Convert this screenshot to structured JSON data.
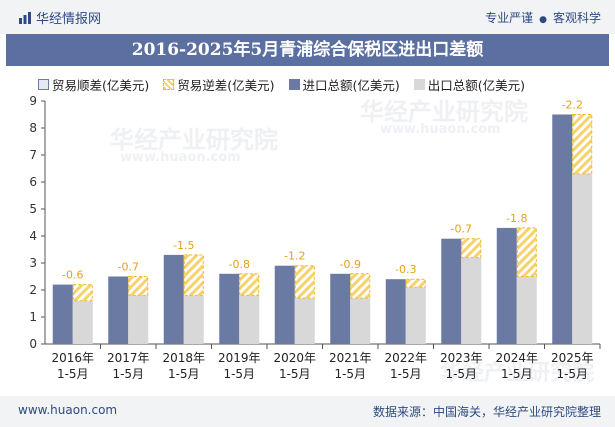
{
  "header": {
    "brand": "华经情报网",
    "slogan_left": "专业严谨",
    "slogan_sep": "●",
    "slogan_right": "客观科学"
  },
  "title": "2016-2025年5月青浦综合保税区进出口差额",
  "legend": {
    "shun": "贸易顺差(亿美元)",
    "ni": "贸易逆差(亿美元)",
    "import": "进口总额(亿美元)",
    "export": "出口总额(亿美元)"
  },
  "watermark": {
    "cn": "华经产业研究院",
    "en": "www.huaon.com"
  },
  "footer": {
    "left": "www.huaon.com",
    "right": "数据来源：中国海关，华经产业研究院整理"
  },
  "colors": {
    "import": "#6a7aa3",
    "export": "#d8d8d8",
    "deficit_border": "#f1b92a",
    "deficit_stripe": "#f6d36a",
    "label": "#e3a21a",
    "axis": "#555555",
    "title_bg": "#5b6fa0"
  },
  "chart_data": {
    "type": "bar",
    "title": "2016-2025年5月青浦综合保税区进出口差额",
    "categories": [
      "2016年\n1-5月",
      "2017年\n1-5月",
      "2018年\n1-5月",
      "2019年\n1-5月",
      "2020年\n1-5月",
      "2021年\n1-5月",
      "2022年\n1-5月",
      "2023年\n1-5月",
      "2024年\n1-5月",
      "2025年\n1-5月"
    ],
    "series": [
      {
        "name": "进口总额(亿美元)",
        "values": [
          2.2,
          2.5,
          3.3,
          2.6,
          2.9,
          2.6,
          2.4,
          3.9,
          4.3,
          8.5
        ]
      },
      {
        "name": "出口总额(亿美元)",
        "values": [
          1.6,
          1.8,
          1.8,
          1.8,
          1.7,
          1.7,
          2.1,
          3.2,
          2.5,
          6.3
        ]
      },
      {
        "name": "贸易逆差(亿美元)",
        "values": [
          -0.6,
          -0.7,
          -1.5,
          -0.8,
          -1.2,
          -0.9,
          -0.3,
          -0.7,
          -1.8,
          -2.2
        ]
      }
    ],
    "deficit_labels": [
      "-0.6",
      "-0.7",
      "-1.5",
      "-0.8",
      "-1.2",
      "-0.9",
      "-0.3",
      "-0.7",
      "-1.8",
      "-2.2"
    ],
    "ylim": [
      0,
      9
    ],
    "yticks": [
      0,
      1,
      2,
      3,
      4,
      5,
      6,
      7,
      8,
      9
    ],
    "xlabel": "",
    "ylabel": ""
  }
}
